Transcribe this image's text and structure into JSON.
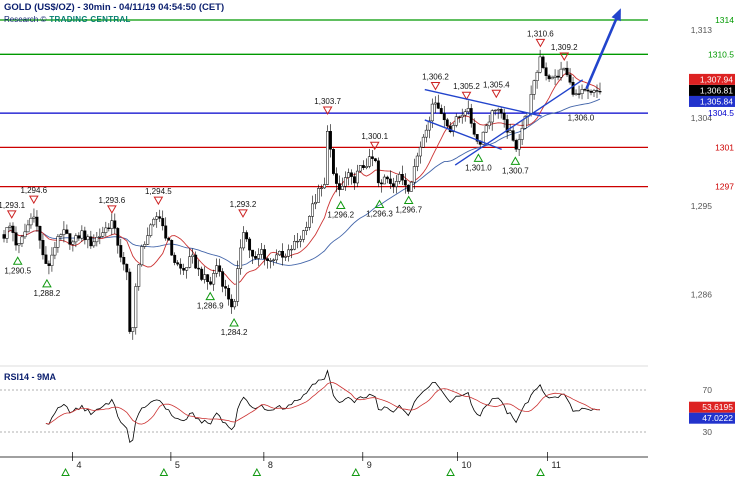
{
  "header": {
    "title": "GOLD (US$/OZ) - 30min - 04/11/19 04:54:50 (CET)",
    "research_prefix": "Research ©",
    "brand": "TRADING CENTRAL"
  },
  "colors": {
    "header_text": "#0a1e6e",
    "brand": "#067f6f",
    "green_level": "#009900",
    "blue_level": "#0000cc",
    "red_level": "#cc0000",
    "candle_stroke": "#000000",
    "ma_fast": "#cc3333",
    "ma_slow": "#4466aa",
    "annotation_blue": "#2244cc",
    "axis_text": "#555555",
    "pivot_high": "#cc2222",
    "pivot_low": "#119911",
    "badge_red": "#dd2222",
    "badge_black": "#000000",
    "badge_blue": "#2233cc",
    "rsi_line": "#000000",
    "rsi_ma": "#cc3333"
  },
  "chart_data": {
    "type": "candlestick",
    "instrument": "GOLD (US$/OZ)",
    "interval": "30min",
    "timestamp": "04/11/19 04:54:50 (CET)",
    "price_axis": {
      "min": 1279,
      "max": 1315.5,
      "ticks": [
        {
          "label": "1,313",
          "value": 1313
        },
        {
          "label": "1,304",
          "value": 1304
        },
        {
          "label": "1,295",
          "value": 1295
        },
        {
          "label": "1,286",
          "value": 1286
        }
      ]
    },
    "levels": [
      {
        "label": "1314",
        "value": 1314,
        "color": "green"
      },
      {
        "label": "1310.5",
        "value": 1310.5,
        "color": "green"
      },
      {
        "label": "1304.5",
        "value": 1304.5,
        "color": "blue"
      },
      {
        "label": "1301",
        "value": 1301,
        "color": "red"
      },
      {
        "label": "1297",
        "value": 1297,
        "color": "red"
      }
    ],
    "price_badges": [
      {
        "label": "1,307.94",
        "value": 1307.94,
        "color": "red"
      },
      {
        "label": "1,306.81",
        "value": 1306.81,
        "color": "black"
      },
      {
        "label": "1,305.84",
        "value": 1305.84,
        "color": "blue"
      }
    ],
    "pivots": [
      {
        "label": "1,293.1",
        "type": "high",
        "x": 0.013,
        "price": 1293.1
      },
      {
        "label": "1,290.5",
        "type": "low",
        "x": 0.023,
        "price": 1290.5
      },
      {
        "label": "1,294.6",
        "type": "high",
        "x": 0.05,
        "price": 1294.6
      },
      {
        "label": "1,288.2",
        "type": "low",
        "x": 0.072,
        "price": 1288.2
      },
      {
        "label": "1,293.6",
        "type": "high",
        "x": 0.181,
        "price": 1293.6
      },
      {
        "label": "1,294.5",
        "type": "high",
        "x": 0.259,
        "price": 1294.5
      },
      {
        "label": "1,286.9",
        "type": "low",
        "x": 0.346,
        "price": 1286.9
      },
      {
        "label": "1,284.2",
        "type": "low",
        "x": 0.386,
        "price": 1284.2
      },
      {
        "label": "1,293.2",
        "type": "high",
        "x": 0.401,
        "price": 1293.2
      },
      {
        "label": "1,303.7",
        "type": "high",
        "x": 0.543,
        "price": 1303.7
      },
      {
        "label": "1,296.2",
        "type": "low",
        "x": 0.565,
        "price": 1296.2
      },
      {
        "label": "1,300.1",
        "type": "high",
        "x": 0.622,
        "price": 1300.1
      },
      {
        "label": "1,296.3",
        "type": "low",
        "x": 0.63,
        "price": 1296.3
      },
      {
        "label": "1,296.7",
        "type": "low",
        "x": 0.679,
        "price": 1296.7
      },
      {
        "label": "1,306.2",
        "type": "high",
        "x": 0.724,
        "price": 1306.2
      },
      {
        "label": "1,305.2",
        "type": "high",
        "x": 0.776,
        "price": 1305.2
      },
      {
        "label": "1,301.0",
        "type": "low",
        "x": 0.796,
        "price": 1301.0
      },
      {
        "label": "1,305.4",
        "type": "high",
        "x": 0.826,
        "price": 1305.4
      },
      {
        "label": "1,300.7",
        "type": "low",
        "x": 0.858,
        "price": 1300.7
      },
      {
        "label": "1,310.6",
        "type": "high",
        "x": 0.9,
        "price": 1310.6
      },
      {
        "label": "1,309.2",
        "type": "high",
        "x": 0.94,
        "price": 1309.2
      }
    ],
    "note": {
      "label": "1,306.0",
      "x": 0.968,
      "price": 1306.0
    },
    "num_candles": 200,
    "close_path": [
      [
        0.0,
        1292.0
      ],
      [
        0.008,
        1293.0
      ],
      [
        0.013,
        1292.8
      ],
      [
        0.023,
        1290.6
      ],
      [
        0.036,
        1292.5
      ],
      [
        0.05,
        1294.4
      ],
      [
        0.06,
        1291.5
      ],
      [
        0.072,
        1288.4
      ],
      [
        0.085,
        1291.0
      ],
      [
        0.1,
        1292.3
      ],
      [
        0.115,
        1291.2
      ],
      [
        0.13,
        1292.3
      ],
      [
        0.145,
        1291.2
      ],
      [
        0.16,
        1292.0
      ],
      [
        0.181,
        1293.4
      ],
      [
        0.192,
        1291.0
      ],
      [
        0.2,
        1289.0
      ],
      [
        0.206,
        1288.0
      ],
      [
        0.213,
        1279.8
      ],
      [
        0.219,
        1286.0
      ],
      [
        0.232,
        1291.0
      ],
      [
        0.245,
        1292.5
      ],
      [
        0.259,
        1294.3
      ],
      [
        0.272,
        1292.0
      ],
      [
        0.285,
        1289.5
      ],
      [
        0.3,
        1288.3
      ],
      [
        0.315,
        1289.8
      ],
      [
        0.33,
        1288.0
      ],
      [
        0.346,
        1287.0
      ],
      [
        0.358,
        1289.2
      ],
      [
        0.368,
        1287.0
      ],
      [
        0.378,
        1285.5
      ],
      [
        0.386,
        1284.4
      ],
      [
        0.394,
        1289.5
      ],
      [
        0.401,
        1292.9
      ],
      [
        0.41,
        1291.0
      ],
      [
        0.42,
        1289.2
      ],
      [
        0.432,
        1290.5
      ],
      [
        0.445,
        1289.2
      ],
      [
        0.458,
        1290.3
      ],
      [
        0.47,
        1289.5
      ],
      [
        0.483,
        1290.8
      ],
      [
        0.5,
        1292.0
      ],
      [
        0.515,
        1294.5
      ],
      [
        0.528,
        1296.5
      ],
      [
        0.538,
        1297.0
      ],
      [
        0.543,
        1303.4
      ],
      [
        0.548,
        1300.5
      ],
      [
        0.553,
        1297.8
      ],
      [
        0.565,
        1296.4
      ],
      [
        0.575,
        1298.2
      ],
      [
        0.585,
        1297.5
      ],
      [
        0.598,
        1298.8
      ],
      [
        0.61,
        1299.5
      ],
      [
        0.622,
        1299.9
      ],
      [
        0.63,
        1296.5
      ],
      [
        0.64,
        1298.2
      ],
      [
        0.652,
        1297.3
      ],
      [
        0.665,
        1298.0
      ],
      [
        0.679,
        1296.9
      ],
      [
        0.692,
        1299.8
      ],
      [
        0.705,
        1302.5
      ],
      [
        0.724,
        1306.0
      ],
      [
        0.735,
        1304.2
      ],
      [
        0.748,
        1302.9
      ],
      [
        0.762,
        1304.0
      ],
      [
        0.776,
        1305.1
      ],
      [
        0.786,
        1303.2
      ],
      [
        0.796,
        1301.2
      ],
      [
        0.808,
        1303.2
      ],
      [
        0.826,
        1305.3
      ],
      [
        0.838,
        1303.6
      ],
      [
        0.85,
        1302.2
      ],
      [
        0.858,
        1300.9
      ],
      [
        0.868,
        1302.8
      ],
      [
        0.878,
        1304.5
      ],
      [
        0.888,
        1307.0
      ],
      [
        0.9,
        1310.4
      ],
      [
        0.908,
        1308.6
      ],
      [
        0.92,
        1307.9
      ],
      [
        0.93,
        1308.4
      ],
      [
        0.94,
        1309.1
      ],
      [
        0.95,
        1307.4
      ],
      [
        0.96,
        1306.2
      ],
      [
        0.972,
        1306.6
      ],
      [
        0.985,
        1306.4
      ],
      [
        1.0,
        1306.8
      ]
    ],
    "x_axis": {
      "ticks": [
        {
          "label": "4",
          "x": 0.115
        },
        {
          "label": "5",
          "x": 0.28
        },
        {
          "label": "8",
          "x": 0.436
        },
        {
          "label": "9",
          "x": 0.602
        },
        {
          "label": "10",
          "x": 0.761
        },
        {
          "label": "11",
          "x": 0.912
        }
      ]
    },
    "annotations": {
      "segments": [
        {
          "x1": 0.706,
          "p1": 1306.9,
          "x2": 0.902,
          "p2": 1304.2
        },
        {
          "x1": 0.706,
          "p1": 1303.8,
          "x2": 0.835,
          "p2": 1300.8
        },
        {
          "x1": 0.757,
          "p1": 1299.2,
          "x2": 0.971,
          "p2": 1307.9
        }
      ],
      "arrow": {
        "x1": 0.978,
        "p1": 1307.1,
        "x2": 1.035,
        "p2": 1315.2
      }
    },
    "rsi": {
      "label": "RSI14 - 9MA",
      "period": 14,
      "ma_period": 9,
      "levels": [
        70,
        30
      ],
      "badges": [
        {
          "label": "53.6195",
          "value": 53.6195,
          "color": "red"
        },
        {
          "label": "47.0222",
          "value": 47.0222,
          "color": "blue"
        }
      ]
    }
  }
}
